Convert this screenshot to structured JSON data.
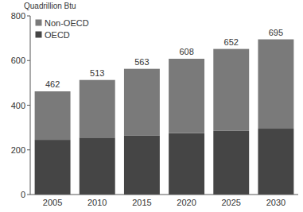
{
  "chart_data": {
    "type": "bar",
    "stacked": true,
    "y_label": "Quadrillion Btu",
    "categories": [
      "2005",
      "2010",
      "2015",
      "2020",
      "2025",
      "2030"
    ],
    "series": [
      {
        "name": "Non-OECD",
        "color": "#7a7a7a",
        "values": [
          217,
          258,
          298,
          333,
          367,
          400
        ]
      },
      {
        "name": "OECD",
        "color": "#454545",
        "values": [
          245,
          255,
          265,
          275,
          285,
          295
        ]
      }
    ],
    "totals": [
      462,
      513,
      563,
      608,
      652,
      695
    ],
    "ylim": [
      0,
      800
    ],
    "yticks": [
      0,
      200,
      400,
      600,
      800
    ],
    "grid": false,
    "legend": "upper left"
  }
}
